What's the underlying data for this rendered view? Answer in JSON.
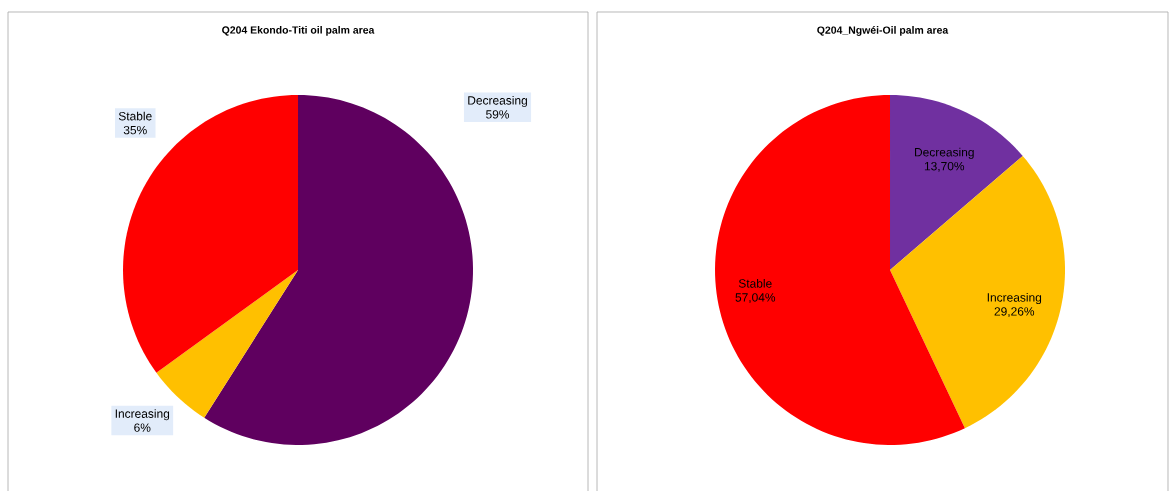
{
  "chart_data": [
    {
      "type": "pie",
      "title": "Q204 Ekondo-Titi oil palm area",
      "categories": [
        "Decreasing",
        "Increasing",
        "Stable"
      ],
      "values": [
        59,
        6,
        35
      ],
      "value_labels": [
        "59%",
        "6%",
        "35%"
      ],
      "colors": [
        "#5f005f",
        "#ffc000",
        "#ff0000"
      ]
    },
    {
      "type": "pie",
      "title": "Q204_Ngwéi-Oil palm area",
      "categories": [
        "Decreasing",
        "Increasing",
        "Stable"
      ],
      "values": [
        13.7,
        29.26,
        57.04
      ],
      "value_labels": [
        "13,70%",
        "29,26%",
        "57,04%"
      ],
      "colors": [
        "#7030a0",
        "#ffc000",
        "#ff0000"
      ]
    }
  ]
}
